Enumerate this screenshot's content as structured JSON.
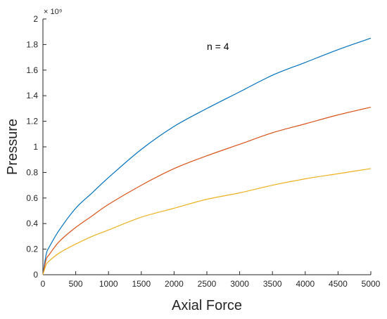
{
  "colors": {
    "axis": "#262626",
    "background": "#ffffff",
    "series": [
      "#0072BD",
      "#D95319",
      "#EDB120"
    ]
  },
  "chart_data": {
    "type": "line",
    "title": "",
    "xlabel": "Axial Force",
    "ylabel": "Pressure",
    "y_exponent": "× 10⁹",
    "annotation": "n = 4",
    "xlim": [
      0,
      5000
    ],
    "ylim": [
      0,
      2
    ],
    "x_ticks": [
      0,
      500,
      1000,
      1500,
      2000,
      2500,
      3000,
      3500,
      4000,
      4500,
      5000
    ],
    "y_ticks": [
      0,
      0.2,
      0.4,
      0.6,
      0.8,
      1,
      1.2,
      1.4,
      1.6,
      1.8,
      2
    ],
    "grid": false,
    "legend": "none",
    "x": [
      0,
      50,
      100,
      250,
      500,
      750,
      1000,
      1500,
      2000,
      2500,
      3000,
      3500,
      4000,
      4500,
      5000
    ],
    "series": [
      {
        "values": [
          0,
          0.16,
          0.22,
          0.35,
          0.52,
          0.64,
          0.76,
          0.98,
          1.16,
          1.3,
          1.43,
          1.56,
          1.66,
          1.76,
          1.85
        ]
      },
      {
        "values": [
          0,
          0.12,
          0.16,
          0.26,
          0.37,
          0.46,
          0.55,
          0.7,
          0.83,
          0.93,
          1.02,
          1.11,
          1.18,
          1.25,
          1.31
        ]
      },
      {
        "values": [
          0,
          0.08,
          0.11,
          0.17,
          0.24,
          0.3,
          0.35,
          0.45,
          0.52,
          0.59,
          0.64,
          0.7,
          0.75,
          0.79,
          0.83
        ]
      }
    ]
  }
}
